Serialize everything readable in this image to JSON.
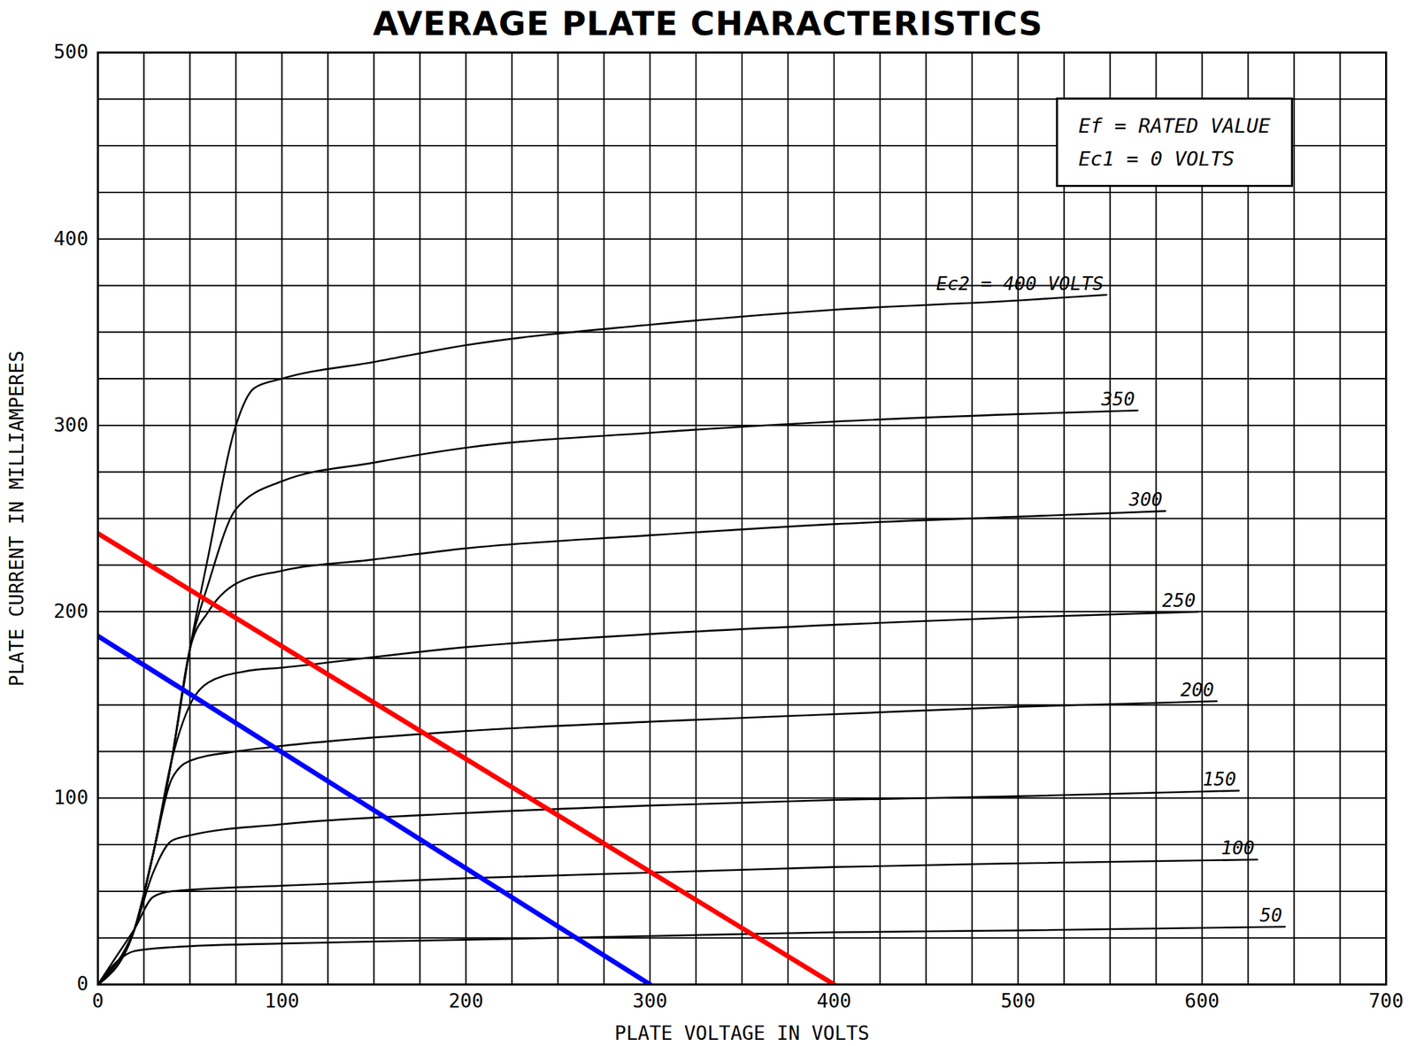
{
  "chart_data": {
    "type": "line",
    "title": "AVERAGE PLATE CHARACTERISTICS",
    "x_label": "PLATE VOLTAGE IN VOLTS",
    "y_label": "PLATE CURRENT IN MILLIAMPERES",
    "annotations": [
      "Ef = RATED VALUE",
      "Ec1 = 0 VOLTS"
    ],
    "xlim": [
      0,
      700
    ],
    "ylim": [
      0,
      500
    ],
    "xticks": [
      0,
      100,
      200,
      300,
      400,
      500,
      600,
      700
    ],
    "yticks": [
      0,
      100,
      200,
      300,
      400,
      500
    ],
    "grid": true,
    "series": [
      {
        "name": "Ec2 = 400 VOLTS",
        "color": "#000000",
        "x": [
          0,
          20,
          30,
          40,
          50,
          60,
          75,
          85,
          100,
          150,
          200,
          300,
          400,
          500,
          548
        ],
        "values": [
          0,
          30,
          70,
          120,
          180,
          230,
          300,
          320,
          325,
          334,
          343,
          354,
          362,
          367,
          370
        ]
      },
      {
        "name": "350",
        "color": "#000000",
        "x": [
          0,
          20,
          30,
          40,
          50,
          60,
          75,
          100,
          150,
          200,
          300,
          400,
          500,
          565
        ],
        "values": [
          0,
          30,
          70,
          120,
          180,
          215,
          255,
          270,
          280,
          288,
          296,
          302,
          306,
          308
        ]
      },
      {
        "name": "300",
        "color": "#000000",
        "x": [
          0,
          20,
          30,
          40,
          50,
          60,
          75,
          100,
          150,
          200,
          300,
          400,
          500,
          580
        ],
        "values": [
          0,
          30,
          70,
          120,
          180,
          200,
          215,
          222,
          228,
          234,
          241,
          247,
          251,
          254
        ]
      },
      {
        "name": "250",
        "color": "#000000",
        "x": [
          0,
          20,
          30,
          40,
          50,
          60,
          80,
          100,
          200,
          300,
          400,
          500,
          598
        ],
        "values": [
          0,
          30,
          70,
          120,
          150,
          162,
          168,
          170,
          181,
          188,
          193,
          197,
          200
        ]
      },
      {
        "name": "200",
        "color": "#000000",
        "x": [
          0,
          20,
          30,
          40,
          50,
          75,
          100,
          200,
          300,
          400,
          500,
          608
        ],
        "values": [
          0,
          30,
          70,
          110,
          120,
          125,
          128,
          136,
          141,
          145,
          149,
          152
        ]
      },
      {
        "name": "150",
        "color": "#000000",
        "x": [
          0,
          20,
          30,
          40,
          50,
          100,
          200,
          300,
          400,
          500,
          620
        ],
        "values": [
          0,
          30,
          60,
          77,
          80,
          86,
          92,
          96,
          99,
          101,
          104
        ]
      },
      {
        "name": "100",
        "color": "#000000",
        "x": [
          0,
          10,
          20,
          30,
          40,
          100,
          200,
          300,
          400,
          500,
          630
        ],
        "values": [
          0,
          15,
          30,
          47,
          50,
          53,
          57,
          60,
          63,
          65,
          67
        ]
      },
      {
        "name": "50",
        "color": "#000000",
        "x": [
          0,
          10,
          20,
          40,
          100,
          200,
          300,
          400,
          500,
          645
        ],
        "values": [
          0,
          12,
          18,
          20,
          22,
          24,
          26,
          28,
          29,
          31
        ]
      },
      {
        "color": "#ff0000",
        "x": [
          0,
          400
        ],
        "values": [
          242,
          0
        ]
      },
      {
        "color": "#0000ff",
        "x": [
          0,
          300
        ],
        "values": [
          187,
          0
        ]
      }
    ]
  }
}
